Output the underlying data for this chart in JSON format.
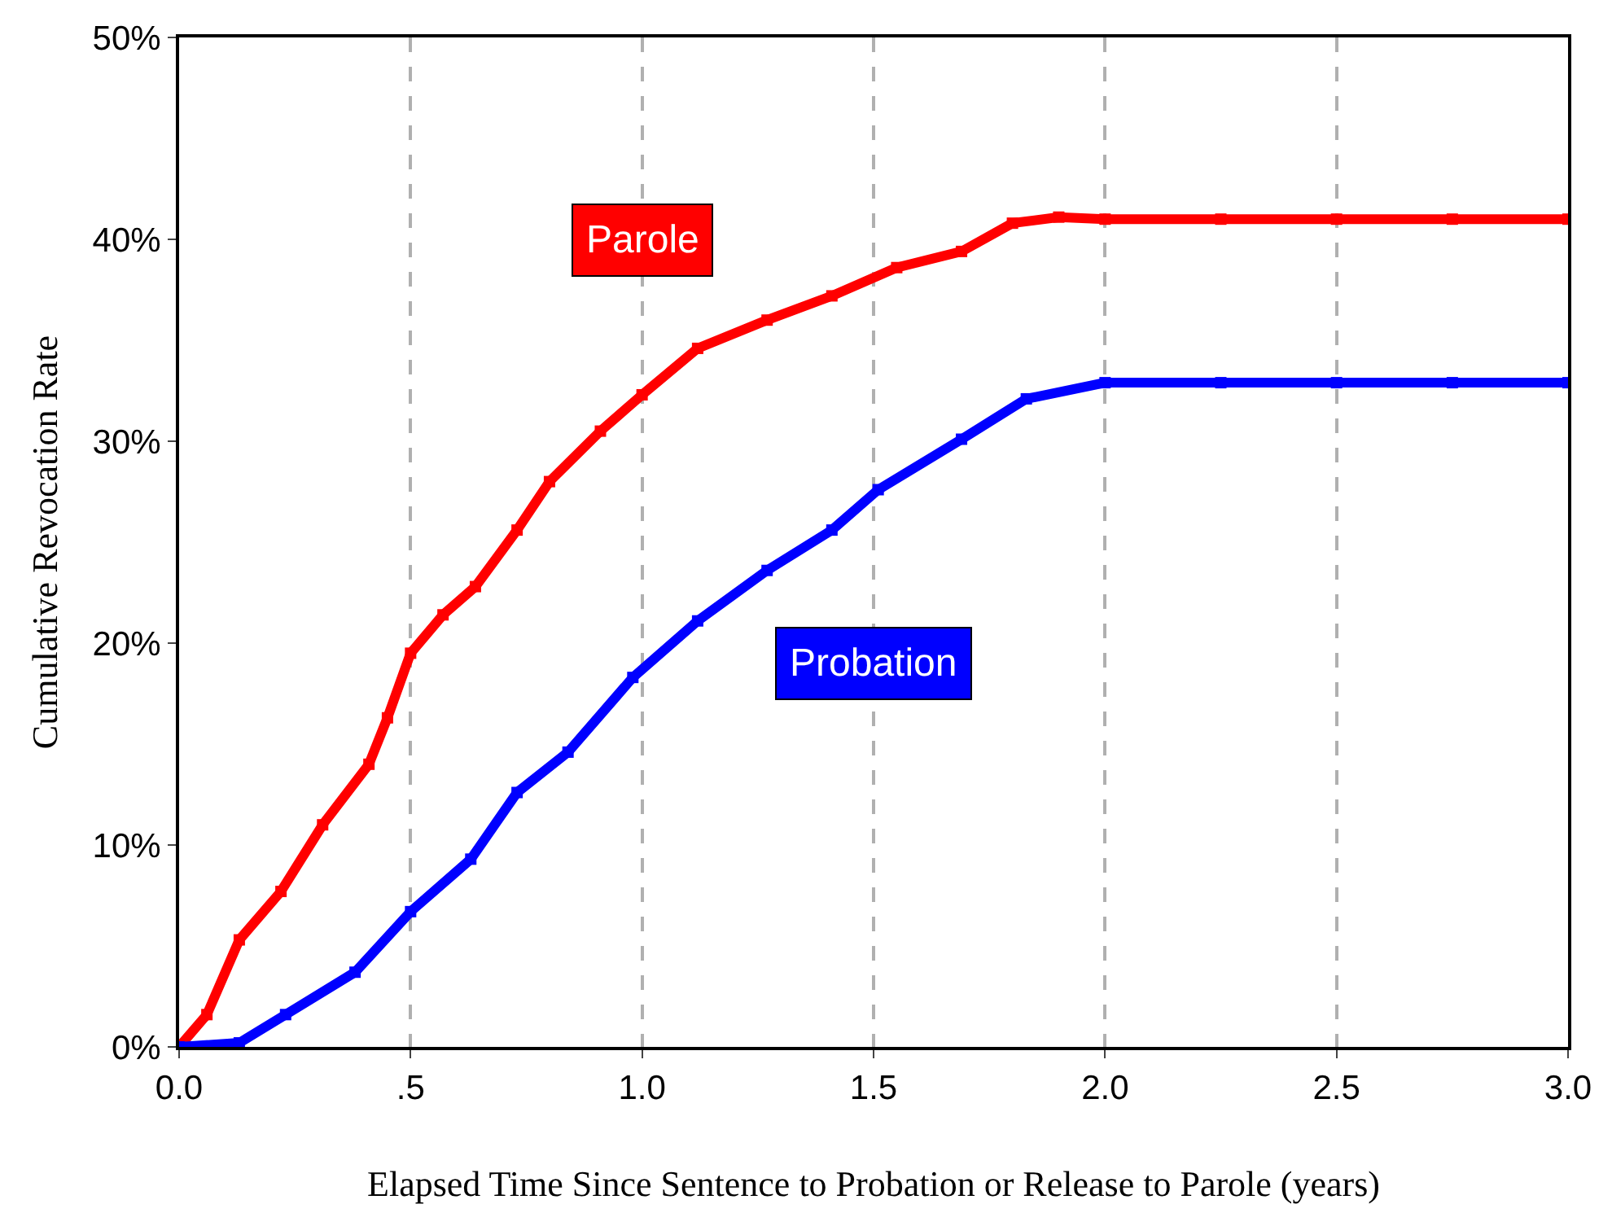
{
  "chart_data": {
    "type": "line",
    "xlabel": "Elapsed Time Since Sentence to Probation or Release to Parole (years)",
    "ylabel": "Cumulative Revocation Rate",
    "xlim": [
      0,
      3
    ],
    "xticks": [
      {
        "value": 0,
        "label": "0.0"
      },
      {
        "value": 0.5,
        "label": ".5"
      },
      {
        "value": 1,
        "label": "1.0"
      },
      {
        "value": 1.5,
        "label": "1.5"
      },
      {
        "value": 2,
        "label": "2.0"
      },
      {
        "value": 2.5,
        "label": "2.5"
      },
      {
        "value": 3,
        "label": "3.0"
      }
    ],
    "ylim": [
      0,
      50
    ],
    "yticks": [
      {
        "value": 0,
        "label": "0%"
      },
      {
        "value": 10,
        "label": "10%"
      },
      {
        "value": 20,
        "label": "20%"
      },
      {
        "value": 30,
        "label": "30%"
      },
      {
        "value": 40,
        "label": "40%"
      },
      {
        "value": 50,
        "label": "50%"
      }
    ],
    "grid": "x",
    "marker": "square",
    "legend": false,
    "series": [
      {
        "name": "Parole",
        "color": "#ff0000",
        "x": [
          0,
          0.06,
          0.13,
          0.22,
          0.31,
          0.41,
          0.45,
          0.5,
          0.57,
          0.64,
          0.73,
          0.8,
          0.91,
          1.0,
          1.12,
          1.27,
          1.41,
          1.55,
          1.69,
          1.8,
          1.9,
          2.0,
          2.25,
          2.5,
          2.75,
          3.0
        ],
        "values": [
          0,
          1.6,
          5.3,
          7.7,
          11,
          14,
          16.3,
          19.5,
          21.4,
          22.8,
          25.6,
          28,
          30.5,
          32.3,
          34.6,
          36,
          37.2,
          38.6,
          39.4,
          40.8,
          41.1,
          41,
          41,
          41,
          41,
          41
        ]
      },
      {
        "name": "Probation",
        "color": "#0000ff",
        "x": [
          0,
          0.13,
          0.23,
          0.38,
          0.5,
          0.63,
          0.73,
          0.84,
          0.98,
          1.12,
          1.27,
          1.41,
          1.51,
          1.69,
          1.83,
          2.0,
          2.25,
          2.5,
          2.75,
          3.0
        ],
        "values": [
          0,
          0.2,
          1.6,
          3.7,
          6.7,
          9.3,
          12.6,
          14.6,
          18.3,
          21.1,
          23.6,
          25.6,
          27.6,
          30.1,
          32.1,
          32.9,
          32.9,
          32.9,
          32.9,
          32.9
        ]
      }
    ]
  }
}
